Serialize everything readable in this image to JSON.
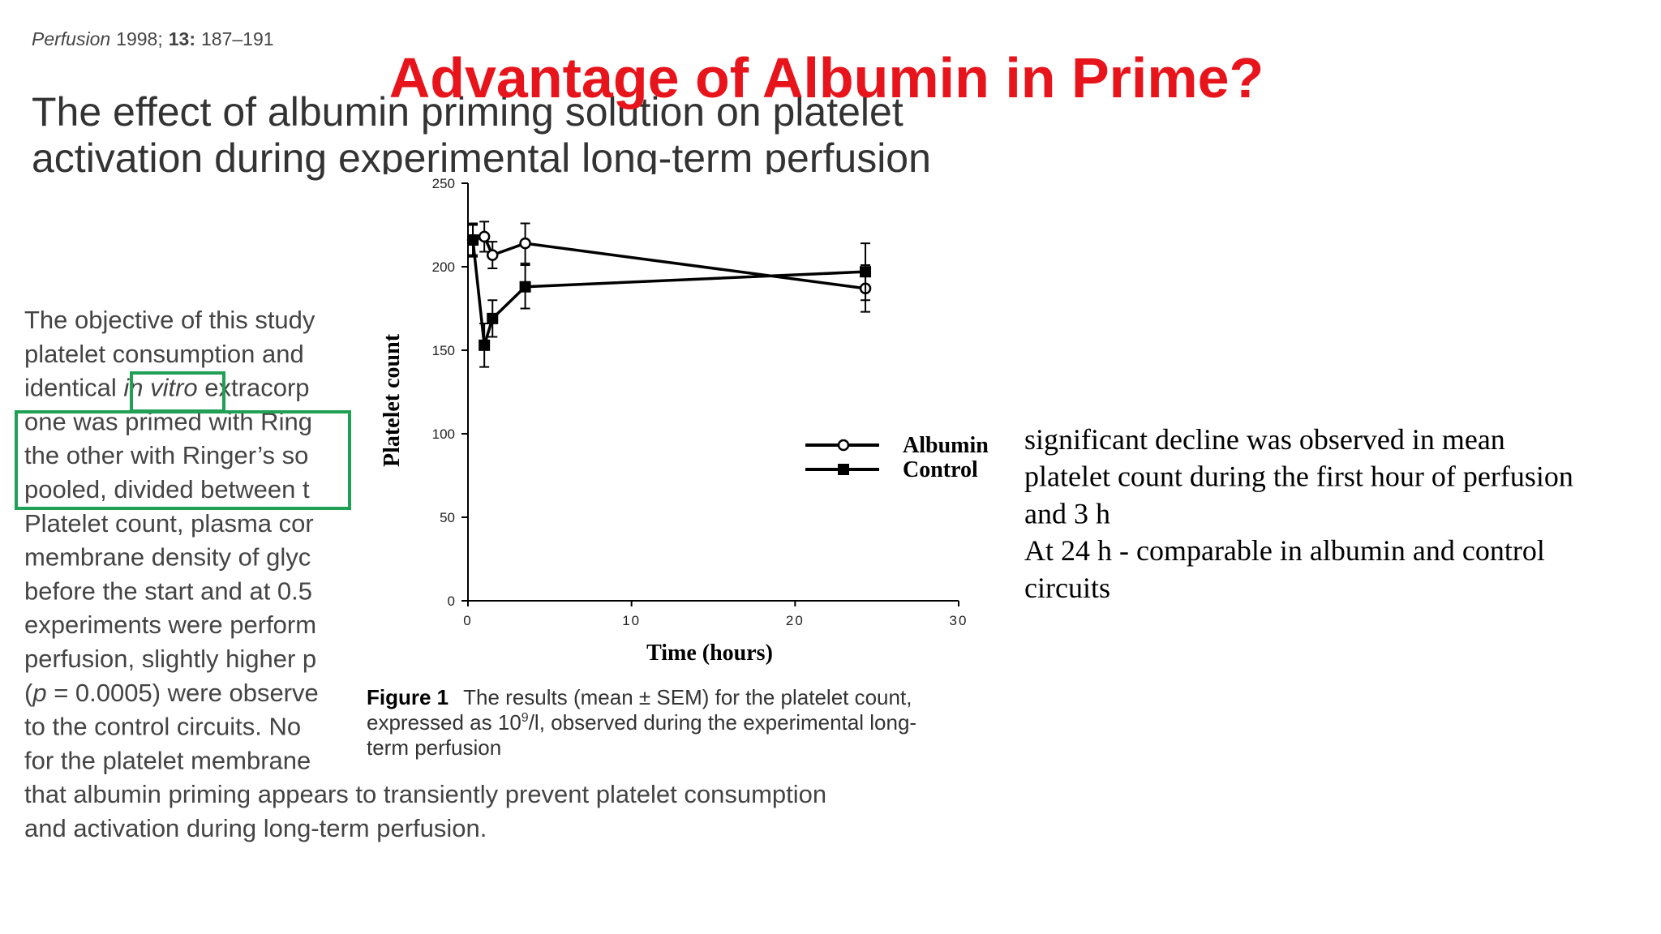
{
  "citation": {
    "journal": "Perfusion",
    "year": "1998;",
    "volume": "13:",
    "pages": "187–191"
  },
  "slide_title": "Advantage of Albumin in Prime?",
  "paper_title": [
    "The effect of albumin priming solution on platelet",
    "activation during experimental long-term perfusion"
  ],
  "abstract": [
    "The objective of this study",
    "platelet consumption and",
    [
      "identical ",
      "in vitro",
      " extracorp"
    ],
    "one was primed with Ring",
    "the other with Ringer’s so",
    "pooled, divided between t",
    "Platelet count, plasma cor",
    "membrane density of glyc",
    "before the start and at 0.5",
    "experiments were perform",
    "perfusion, slightly higher p",
    [
      "(",
      "p",
      " = 0.0005) were observe"
    ],
    "to the control circuits. No",
    "for the platelet membrane",
    "that albumin priming appears to transiently prevent platelet consumption",
    "and activation during long-term perfusion."
  ],
  "caption": {
    "label": "Figure 1",
    "lines": [
      "The results (mean ± SEM) for the platelet count,",
      [
        "expressed as 10",
        "9",
        "/l, observed during the experimental long-"
      ],
      "term perfusion"
    ]
  },
  "notes": [
    "significant decline was observed in mean",
    "platelet count during the first hour of perfusion",
    "and 3 h",
    "At 24 h - comparable in albumin and control",
    "circuits"
  ],
  "chart_data": {
    "type": "line",
    "x_label": "Time (hours)",
    "y_label": "Platelet count",
    "x": [
      0.3,
      1,
      1.5,
      3.5,
      24.3
    ],
    "xlim": [
      0,
      30
    ],
    "xticks": [
      0,
      10,
      20,
      30
    ],
    "ylim": [
      0,
      250
    ],
    "yticks": [
      0,
      50,
      100,
      150,
      200,
      250
    ],
    "legend": "right",
    "series": [
      {
        "name": "Albumin",
        "color": "#000000",
        "marker": "circle",
        "values": [
          216,
          218,
          207,
          214,
          187
        ],
        "errors": [
          9,
          9,
          8,
          12,
          14
        ]
      },
      {
        "name": "Control",
        "color": "#000000",
        "marker": "square",
        "values": [
          216,
          153,
          169,
          188,
          197
        ],
        "errors": [
          10,
          13,
          11,
          13,
          17
        ]
      }
    ]
  }
}
